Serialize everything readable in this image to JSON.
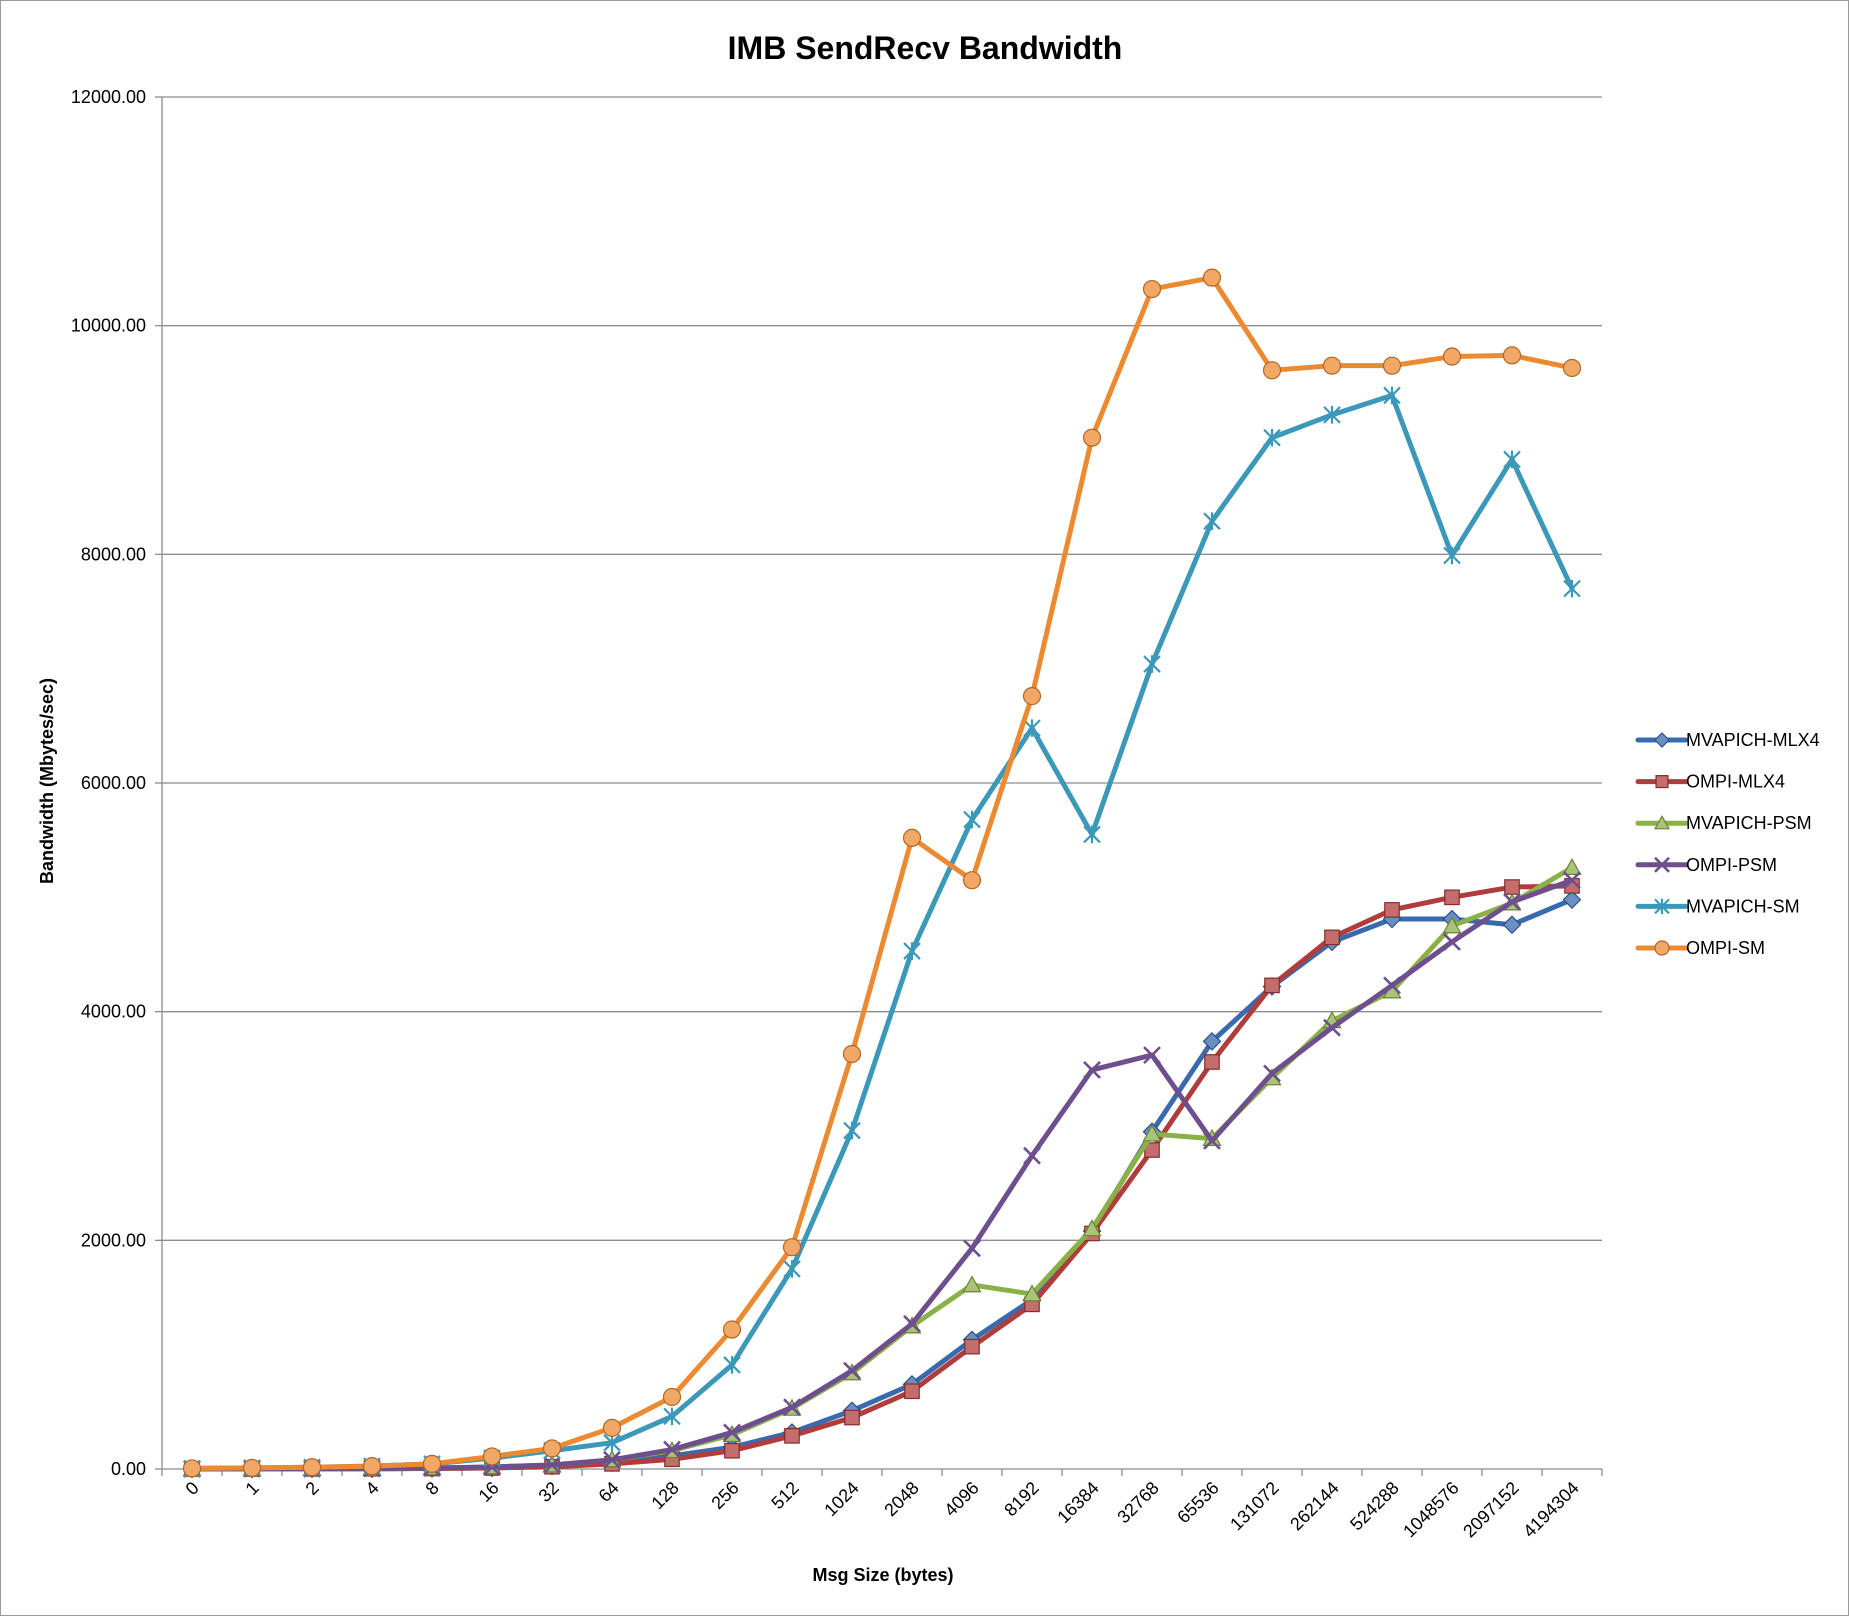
{
  "chart_data": {
    "type": "line",
    "title": "IMB SendRecv Bandwidth",
    "xlabel": "Msg Size (bytes)",
    "ylabel": "Bandwidth (Mbytes/sec)",
    "ylim": [
      0,
      12000
    ],
    "y_ticks": [
      "0.00",
      "2000.00",
      "4000.00",
      "6000.00",
      "8000.00",
      "10000.00",
      "12000.00"
    ],
    "grid": "horizontal major gridlines",
    "legend_position": "right",
    "categories": [
      "0",
      "1",
      "2",
      "4",
      "8",
      "16",
      "32",
      "64",
      "128",
      "256",
      "512",
      "1024",
      "2048",
      "4096",
      "8192",
      "16384",
      "32768",
      "65536",
      "131072",
      "262144",
      "524288",
      "1048576",
      "2097152",
      "4194304"
    ],
    "series": [
      {
        "name": "MVAPICH-MLX4",
        "color": "#3a6aae",
        "marker": "diamond",
        "values": [
          0,
          0,
          1,
          2,
          5,
          10,
          25,
          55,
          115,
          190,
          320,
          510,
          740,
          1130,
          1480,
          2080,
          2950,
          3740,
          4220,
          4610,
          4810,
          4810,
          4760,
          4980
        ]
      },
      {
        "name": "OMPI-MLX4",
        "color": "#b03c3c",
        "marker": "square",
        "values": [
          0,
          0,
          1,
          2,
          4,
          9,
          20,
          45,
          85,
          160,
          290,
          450,
          680,
          1070,
          1440,
          2060,
          2790,
          3560,
          4230,
          4650,
          4890,
          5000,
          5090,
          5100
        ]
      },
      {
        "name": "MVAPICH-PSM",
        "color": "#8cb048",
        "marker": "triangle",
        "values": [
          0,
          1,
          2,
          4,
          9,
          18,
          35,
          80,
          160,
          300,
          530,
          840,
          1250,
          1610,
          1530,
          2100,
          2930,
          2890,
          3420,
          3920,
          4180,
          4750,
          4950,
          5260
        ]
      },
      {
        "name": "OMPI-PSM",
        "color": "#6e4f8e",
        "marker": "x",
        "values": [
          0,
          1,
          2,
          4,
          9,
          18,
          35,
          80,
          170,
          320,
          540,
          860,
          1270,
          1930,
          2740,
          3490,
          3620,
          2870,
          3460,
          3860,
          4230,
          4610,
          4960,
          5150
        ]
      },
      {
        "name": "MVAPICH-SM",
        "color": "#3b98b8",
        "marker": "star",
        "values": [
          5,
          10,
          15,
          25,
          45,
          95,
          160,
          230,
          460,
          910,
          1750,
          2960,
          4530,
          5680,
          6480,
          5550,
          7040,
          8290,
          9020,
          9220,
          9390,
          7990,
          8830,
          7700
        ]
      },
      {
        "name": "OMPI-SM",
        "color": "#ec8a32",
        "marker": "circle",
        "values": [
          5,
          10,
          15,
          25,
          45,
          110,
          180,
          360,
          630,
          1220,
          1940,
          3630,
          5520,
          5150,
          6760,
          9020,
          10320,
          10420,
          9610,
          9650,
          9650,
          9730,
          9740,
          9630
        ]
      }
    ]
  }
}
